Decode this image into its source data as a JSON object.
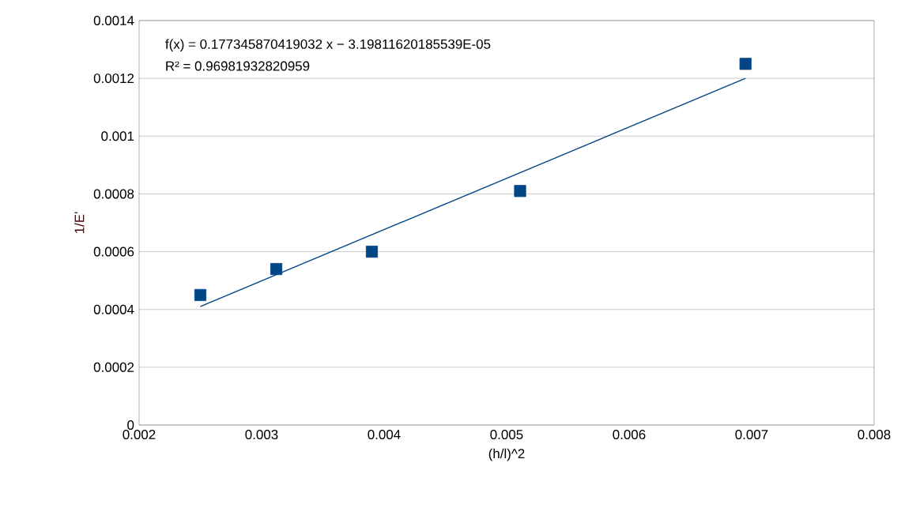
{
  "chart_data": {
    "type": "scatter",
    "xlabel": "(h/l)^2",
    "ylabel": "1/E'",
    "annotations": [
      "f(x) = 0.177345870419032 x − 3.19811620185539E-05",
      "R² = 0.96981932820959"
    ],
    "series": [
      {
        "color": "#004586",
        "marker": "square",
        "x": [
          0.0025,
          0.00312,
          0.0039,
          0.00511,
          0.00695
        ],
        "values": [
          0.00045,
          0.00054,
          0.0006,
          0.00081,
          0.00125
        ]
      },
      {
        "type": "line",
        "color": "#004586",
        "marker": "none",
        "x": [
          0.0025,
          0.00695
        ],
        "values": [
          0.00041,
          0.0012
        ]
      }
    ],
    "xlim": [
      0.002,
      0.008
    ],
    "xticks": [
      0.002,
      0.003,
      0.004,
      0.005,
      0.006,
      0.007,
      0.008
    ],
    "ylim": [
      0,
      0.0014
    ],
    "yticks": [
      0,
      0.0002,
      0.0004,
      0.0006,
      0.0008,
      0.001,
      0.0012,
      0.0014
    ],
    "grid": "y"
  }
}
